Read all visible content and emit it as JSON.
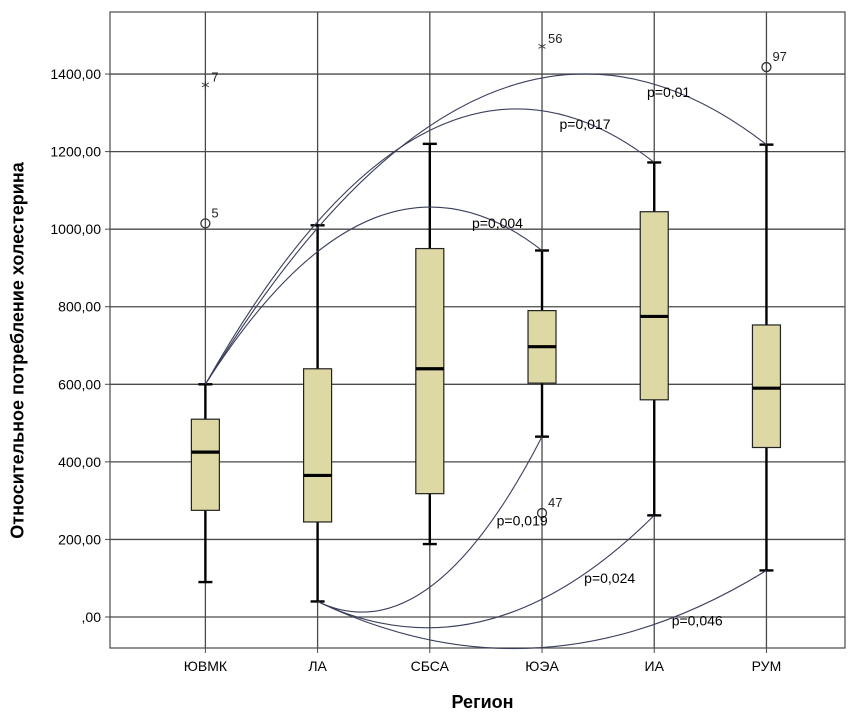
{
  "chart_data": {
    "type": "box",
    "xlabel": "Регион",
    "ylabel": "Относительное потребление холестерина",
    "ylim": [
      -80,
      1560
    ],
    "yticks": [
      {
        "value": 0,
        "label": ",00"
      },
      {
        "value": 200,
        "label": "200,00"
      },
      {
        "value": 400,
        "label": "400,00"
      },
      {
        "value": 600,
        "label": "600,00"
      },
      {
        "value": 800,
        "label": "800,00"
      },
      {
        "value": 1000,
        "label": "1000,00"
      },
      {
        "value": 1200,
        "label": "1200,00"
      },
      {
        "value": 1400,
        "label": "1400,00"
      }
    ],
    "categories": [
      "ЮВМК",
      "ЛА",
      "СБСА",
      "ЮЭА",
      "ИА",
      "РУМ"
    ],
    "boxes": [
      {
        "category": "ЮВМК",
        "whisker_low": 90,
        "q1": 275,
        "median": 425,
        "q3": 510,
        "whisker_high": 600
      },
      {
        "category": "ЛА",
        "whisker_low": 40,
        "q1": 245,
        "median": 365,
        "q3": 640,
        "whisker_high": 1010
      },
      {
        "category": "СБСА",
        "whisker_low": 188,
        "q1": 318,
        "median": 640,
        "q3": 950,
        "whisker_high": 1220
      },
      {
        "category": "ЮЭА",
        "whisker_low": 465,
        "q1": 603,
        "median": 697,
        "q3": 790,
        "whisker_high": 945
      },
      {
        "category": "ИА",
        "whisker_low": 262,
        "q1": 560,
        "median": 775,
        "q3": 1045,
        "whisker_high": 1172
      },
      {
        "category": "РУМ",
        "whisker_low": 120,
        "q1": 437,
        "median": 590,
        "q3": 753,
        "whisker_high": 1218
      }
    ],
    "outliers": [
      {
        "category": "ЮВМК",
        "value": 1015,
        "marker": "circle",
        "label": "5"
      },
      {
        "category": "ЮВМК",
        "value": 1365,
        "marker": "star",
        "label": "7"
      },
      {
        "category": "ЮЭА",
        "value": 1465,
        "marker": "star",
        "label": "56"
      },
      {
        "category": "ЮЭА",
        "value": 268,
        "marker": "circle",
        "label": "47"
      },
      {
        "category": "РУМ",
        "value": 1418,
        "marker": "circle",
        "label": "97"
      }
    ],
    "comparisons": [
      {
        "from": "ЮВМК",
        "to": "РУМ",
        "p": "p=0,01"
      },
      {
        "from": "ЮВМК",
        "to": "ИА",
        "p": "p=0,017"
      },
      {
        "from": "ЮВМК",
        "to": "ЮЭА",
        "p": "p=0,004"
      },
      {
        "from": "ЛА",
        "to": "ЮЭА",
        "p": "p=0,019"
      },
      {
        "from": "ЛА",
        "to": "ИА",
        "p": "p=0,024"
      },
      {
        "from": "ЛА",
        "to": "РУМ",
        "p": "p=0,046"
      }
    ],
    "grid": true,
    "colors": {
      "box_fill": "#ddd8a4",
      "box_stroke": "#222222",
      "grid": "#4a4a4a",
      "arc": "#3a3f5c",
      "background": "#ffffff"
    }
  }
}
